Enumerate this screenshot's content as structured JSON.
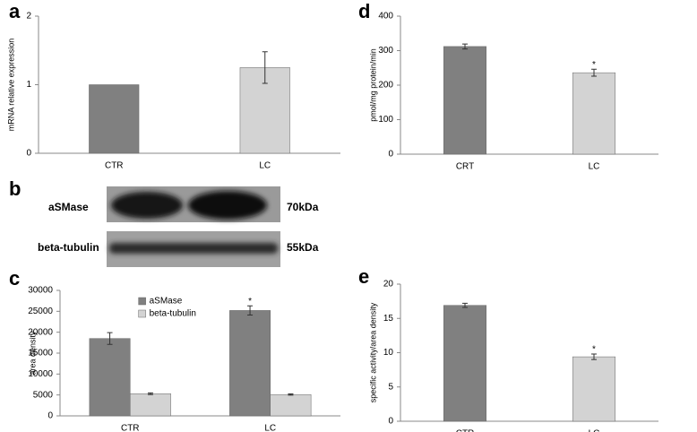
{
  "chart_data": [
    {
      "type": "bar",
      "panel_label": "a",
      "y_label": "mRNA relative expression",
      "categories": [
        "CTR",
        "LC"
      ],
      "values": [
        1,
        1.25
      ],
      "errors": [
        null,
        0.23
      ],
      "colors": [
        "#808080",
        "#d3d3d3"
      ],
      "ylim": [
        0,
        2
      ],
      "yticks": [
        0,
        1,
        2
      ]
    },
    {
      "type": "bar",
      "panel_label": "c",
      "y_label": "area density",
      "categories": [
        "CTR",
        "LC"
      ],
      "series": [
        {
          "name": "aSMase",
          "color": "#808080",
          "values": [
            18500,
            25200
          ],
          "errors": [
            1400,
            1100
          ],
          "significance": [
            null,
            "*"
          ]
        },
        {
          "name": "beta-tubulin",
          "color": "#d3d3d3",
          "values": [
            5300,
            5100
          ],
          "errors": [
            200,
            150
          ]
        }
      ],
      "legend": "top-left",
      "ylim": [
        0,
        30000
      ],
      "yticks": [
        0,
        5000,
        10000,
        15000,
        20000,
        25000,
        30000
      ]
    },
    {
      "type": "bar",
      "panel_label": "d",
      "y_label": "pmol/mg protein/min",
      "categories": [
        "CRT",
        "LC"
      ],
      "values": [
        312,
        236
      ],
      "errors": [
        7,
        10
      ],
      "significance": [
        null,
        "*"
      ],
      "colors": [
        "#808080",
        "#d3d3d3"
      ],
      "ylim": [
        0,
        400
      ],
      "yticks": [
        0,
        100,
        200,
        300,
        400
      ]
    },
    {
      "type": "bar",
      "panel_label": "e",
      "y_label": "specific activity/area density",
      "categories": [
        "CTR",
        "LC"
      ],
      "values": [
        16.9,
        9.4
      ],
      "errors": [
        0.3,
        0.4
      ],
      "significance": [
        null,
        "*"
      ],
      "colors": [
        "#808080",
        "#d3d3d3"
      ],
      "ylim": [
        0,
        20
      ],
      "yticks": [
        0,
        5,
        10,
        15,
        20
      ]
    }
  ],
  "blot": {
    "panel_label": "b",
    "rows": [
      {
        "protein": "aSMase",
        "size": "70kDa"
      },
      {
        "protein": "beta-tubulin",
        "size": "55kDa"
      }
    ]
  }
}
